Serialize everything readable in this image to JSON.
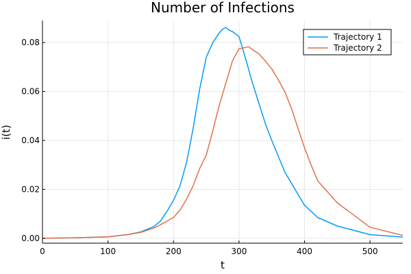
{
  "chart_data": {
    "type": "line",
    "title": "Number of Infections",
    "xlabel": "t",
    "ylabel": "i(t)",
    "xlim": [
      0,
      550
    ],
    "ylim": [
      -0.002,
      0.089
    ],
    "xticks": [
      0,
      100,
      200,
      300,
      400,
      500
    ],
    "yticks": [
      0.0,
      0.02,
      0.04,
      0.06,
      0.08
    ],
    "xtick_labels": [
      "0",
      "100",
      "200",
      "300",
      "400",
      "500"
    ],
    "ytick_labels": [
      "0.00",
      "0.02",
      "0.04",
      "0.06",
      "0.08"
    ],
    "grid": true,
    "legend_position": "top-right",
    "series": [
      {
        "name": "Trajectory 1",
        "color": "#009AFA",
        "x": [
          0,
          50,
          100,
          130,
          150,
          170,
          180,
          190,
          200,
          210,
          220,
          230,
          240,
          250,
          260,
          270,
          275,
          280,
          285,
          290,
          300,
          310,
          320,
          330,
          340,
          350,
          370,
          400,
          420,
          450,
          500,
          550
        ],
        "y": [
          0.0,
          0.0002,
          0.0006,
          0.0015,
          0.0026,
          0.0048,
          0.007,
          0.011,
          0.0155,
          0.0215,
          0.031,
          0.045,
          0.061,
          0.074,
          0.08,
          0.084,
          0.0855,
          0.0862,
          0.085,
          0.0845,
          0.0825,
          0.0735,
          0.064,
          0.0555,
          0.047,
          0.04,
          0.027,
          0.0135,
          0.0085,
          0.005,
          0.0015,
          0.0005
        ]
      },
      {
        "name": "Trajectory 2",
        "color": "#E26F46",
        "x": [
          0,
          50,
          100,
          130,
          150,
          170,
          180,
          190,
          200,
          210,
          220,
          230,
          240,
          250,
          260,
          270,
          280,
          290,
          300,
          310,
          315,
          320,
          330,
          340,
          350,
          360,
          370,
          380,
          390,
          400,
          410,
          420,
          450,
          500,
          550
        ],
        "y": [
          0.0,
          0.0002,
          0.0006,
          0.0015,
          0.0024,
          0.0042,
          0.0055,
          0.007,
          0.0085,
          0.0115,
          0.016,
          0.0215,
          0.0285,
          0.034,
          0.044,
          0.0545,
          0.0635,
          0.0725,
          0.0775,
          0.078,
          0.0783,
          0.0772,
          0.0755,
          0.0725,
          0.0692,
          0.0648,
          0.0598,
          0.0532,
          0.045,
          0.037,
          0.03,
          0.0235,
          0.0145,
          0.0045,
          0.0012
        ]
      }
    ]
  }
}
